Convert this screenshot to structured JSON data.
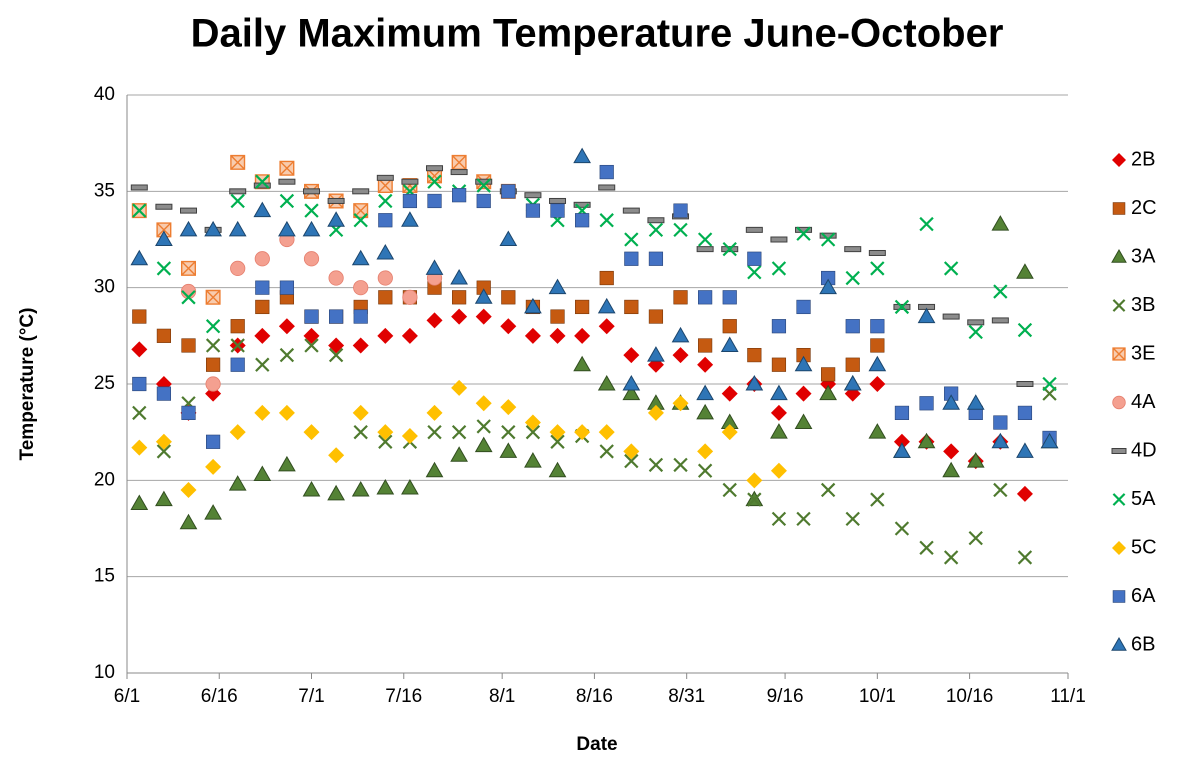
{
  "chart_data": {
    "type": "scatter",
    "title": "Daily Maximum Temperature June-October",
    "x_label": "Date",
    "y_label": "Temperature (°C)",
    "xlim": [
      "6/1",
      "11/1"
    ],
    "xticks": [
      "6/1",
      "6/16",
      "7/1",
      "7/16",
      "8/1",
      "8/16",
      "8/31",
      "9/16",
      "10/1",
      "10/16",
      "11/1"
    ],
    "ylim": [
      10,
      40
    ],
    "yticks": [
      10,
      15,
      20,
      25,
      30,
      35,
      40
    ],
    "grid": true,
    "legend": "right",
    "x": [
      "6/3",
      "6/7",
      "6/11",
      "6/15",
      "6/19",
      "6/23",
      "6/27",
      "7/1",
      "7/5",
      "7/9",
      "7/13",
      "7/17",
      "7/21",
      "7/25",
      "7/29",
      "8/2",
      "8/6",
      "8/10",
      "8/14",
      "8/18",
      "8/22",
      "8/26",
      "8/30",
      "9/3",
      "9/7",
      "9/11",
      "9/15",
      "9/19",
      "9/23",
      "9/27",
      "10/1",
      "10/5",
      "10/9",
      "10/13",
      "10/17",
      "10/21",
      "10/25",
      "10/29"
    ],
    "series": [
      {
        "name": "2B",
        "color": "#e00000",
        "marker": "diamond",
        "values": [
          26.8,
          25,
          23.5,
          24.5,
          27,
          27.5,
          28,
          27.5,
          27,
          27,
          27.5,
          27.5,
          28.3,
          28.5,
          28.5,
          28,
          27.5,
          27.5,
          27.5,
          28,
          26.5,
          26,
          26.5,
          26,
          24.5,
          25,
          23.5,
          24.5,
          25,
          24.5,
          25,
          22,
          22,
          21.5,
          21,
          22,
          19.3,
          null
        ]
      },
      {
        "name": "2C",
        "color": "#c55a11",
        "marker": "square",
        "values": [
          28.5,
          27.5,
          27,
          26,
          28,
          29,
          29.5,
          28.5,
          28.5,
          29,
          29.5,
          29.5,
          30,
          29.5,
          30,
          29.5,
          29,
          28.5,
          29,
          30.5,
          29,
          28.5,
          29.5,
          27,
          28,
          26.5,
          26,
          26.5,
          25.5,
          26,
          27,
          null,
          null,
          null,
          null,
          null,
          null,
          null
        ]
      },
      {
        "name": "3A",
        "color": "#548235",
        "marker": "triangle",
        "values": [
          18.8,
          19,
          17.8,
          18.3,
          19.8,
          20.3,
          20.8,
          19.5,
          19.3,
          19.5,
          19.6,
          19.6,
          20.5,
          21.3,
          21.8,
          21.5,
          21,
          20.5,
          26,
          25,
          24.5,
          24,
          24,
          23.5,
          23,
          19,
          22.5,
          23,
          24.5,
          25,
          22.5,
          21.5,
          22,
          20.5,
          21,
          33.3,
          30.8,
          22
        ]
      },
      {
        "name": "3B",
        "color": "#4f7a2f",
        "marker": "x",
        "values": [
          23.5,
          21.5,
          24,
          27,
          27,
          26,
          26.5,
          27,
          26.5,
          22.5,
          22,
          22,
          22.5,
          22.5,
          22.8,
          22.5,
          22.5,
          22,
          22.3,
          21.5,
          21,
          20.8,
          20.8,
          20.5,
          19.5,
          19,
          18,
          18,
          19.5,
          18,
          19,
          17.5,
          16.5,
          16,
          17,
          19.5,
          16,
          24.5
        ]
      },
      {
        "name": "3E",
        "color": "#f8cbad",
        "marker": "squarex",
        "values": [
          34,
          33,
          31,
          29.5,
          36.5,
          35.5,
          36.2,
          35,
          34.5,
          34,
          35.3,
          35.3,
          35.8,
          36.5,
          35.5,
          35,
          null,
          null,
          null,
          null,
          null,
          null,
          null,
          null,
          null,
          null,
          null,
          null,
          null,
          null,
          null,
          null,
          null,
          null,
          null,
          null,
          null,
          null
        ]
      },
      {
        "name": "4A",
        "color": "#f4a090",
        "marker": "circle",
        "values": [
          null,
          null,
          29.8,
          25,
          31,
          31.5,
          32.5,
          31.5,
          30.5,
          30,
          30.5,
          29.5,
          30.5,
          null,
          null,
          null,
          null,
          null,
          null,
          null,
          null,
          null,
          null,
          null,
          null,
          null,
          null,
          null,
          null,
          null,
          null,
          null,
          null,
          null,
          null,
          null,
          null,
          null
        ]
      },
      {
        "name": "4D",
        "color": "#8c8c8c",
        "marker": "dash",
        "values": [
          35.2,
          34.2,
          34,
          33,
          35,
          35.3,
          35.5,
          35,
          34.5,
          35,
          35.7,
          35.5,
          36.2,
          36,
          35.5,
          35,
          34.8,
          34.5,
          34.3,
          35.2,
          34,
          33.5,
          33.7,
          32,
          32,
          33,
          32.5,
          33,
          32.7,
          32,
          31.8,
          29,
          29,
          28.5,
          28.2,
          28.3,
          25,
          null
        ]
      },
      {
        "name": "5A",
        "color": "#00b050",
        "marker": "x",
        "values": [
          34,
          31,
          29.5,
          28,
          34.5,
          35.5,
          34.5,
          34,
          33,
          33.5,
          34.5,
          35,
          35.5,
          35,
          35.3,
          35,
          34.3,
          33.5,
          34,
          33.5,
          32.5,
          33,
          33,
          32.5,
          32,
          30.8,
          31,
          32.8,
          32.5,
          30.5,
          31,
          29,
          33.3,
          31,
          27.7,
          29.8,
          27.8,
          25
        ]
      },
      {
        "name": "5C",
        "color": "#ffc000",
        "marker": "diamond",
        "values": [
          21.7,
          22,
          19.5,
          20.7,
          22.5,
          23.5,
          23.5,
          22.5,
          21.3,
          23.5,
          22.5,
          22.3,
          23.5,
          24.8,
          24,
          23.8,
          23,
          22.5,
          22.5,
          22.5,
          21.5,
          23.5,
          24,
          21.5,
          22.5,
          20,
          20.5,
          null,
          null,
          null,
          null,
          null,
          null,
          null,
          null,
          null,
          null,
          null
        ]
      },
      {
        "name": "6A",
        "color": "#4472c4",
        "marker": "square",
        "values": [
          25,
          24.5,
          23.5,
          22,
          26,
          30,
          30,
          28.5,
          28.5,
          28.5,
          33.5,
          34.5,
          34.5,
          34.8,
          34.5,
          35,
          34,
          34,
          33.5,
          36,
          31.5,
          31.5,
          34,
          29.5,
          29.5,
          31.5,
          28,
          29,
          30.5,
          28,
          28,
          23.5,
          24,
          24.5,
          23.5,
          23,
          23.5,
          22.2
        ]
      },
      {
        "name": "6B",
        "color": "#2e75b6",
        "marker": "triangle",
        "values": [
          31.5,
          32.5,
          33,
          33,
          33,
          34,
          33,
          33,
          33.5,
          31.5,
          31.8,
          33.5,
          31,
          30.5,
          29.5,
          32.5,
          29,
          30,
          36.8,
          29,
          25,
          26.5,
          27.5,
          24.5,
          27,
          25,
          24.5,
          26,
          30,
          25,
          26,
          21.5,
          28.5,
          24,
          24,
          22,
          21.5,
          22
        ]
      }
    ]
  }
}
